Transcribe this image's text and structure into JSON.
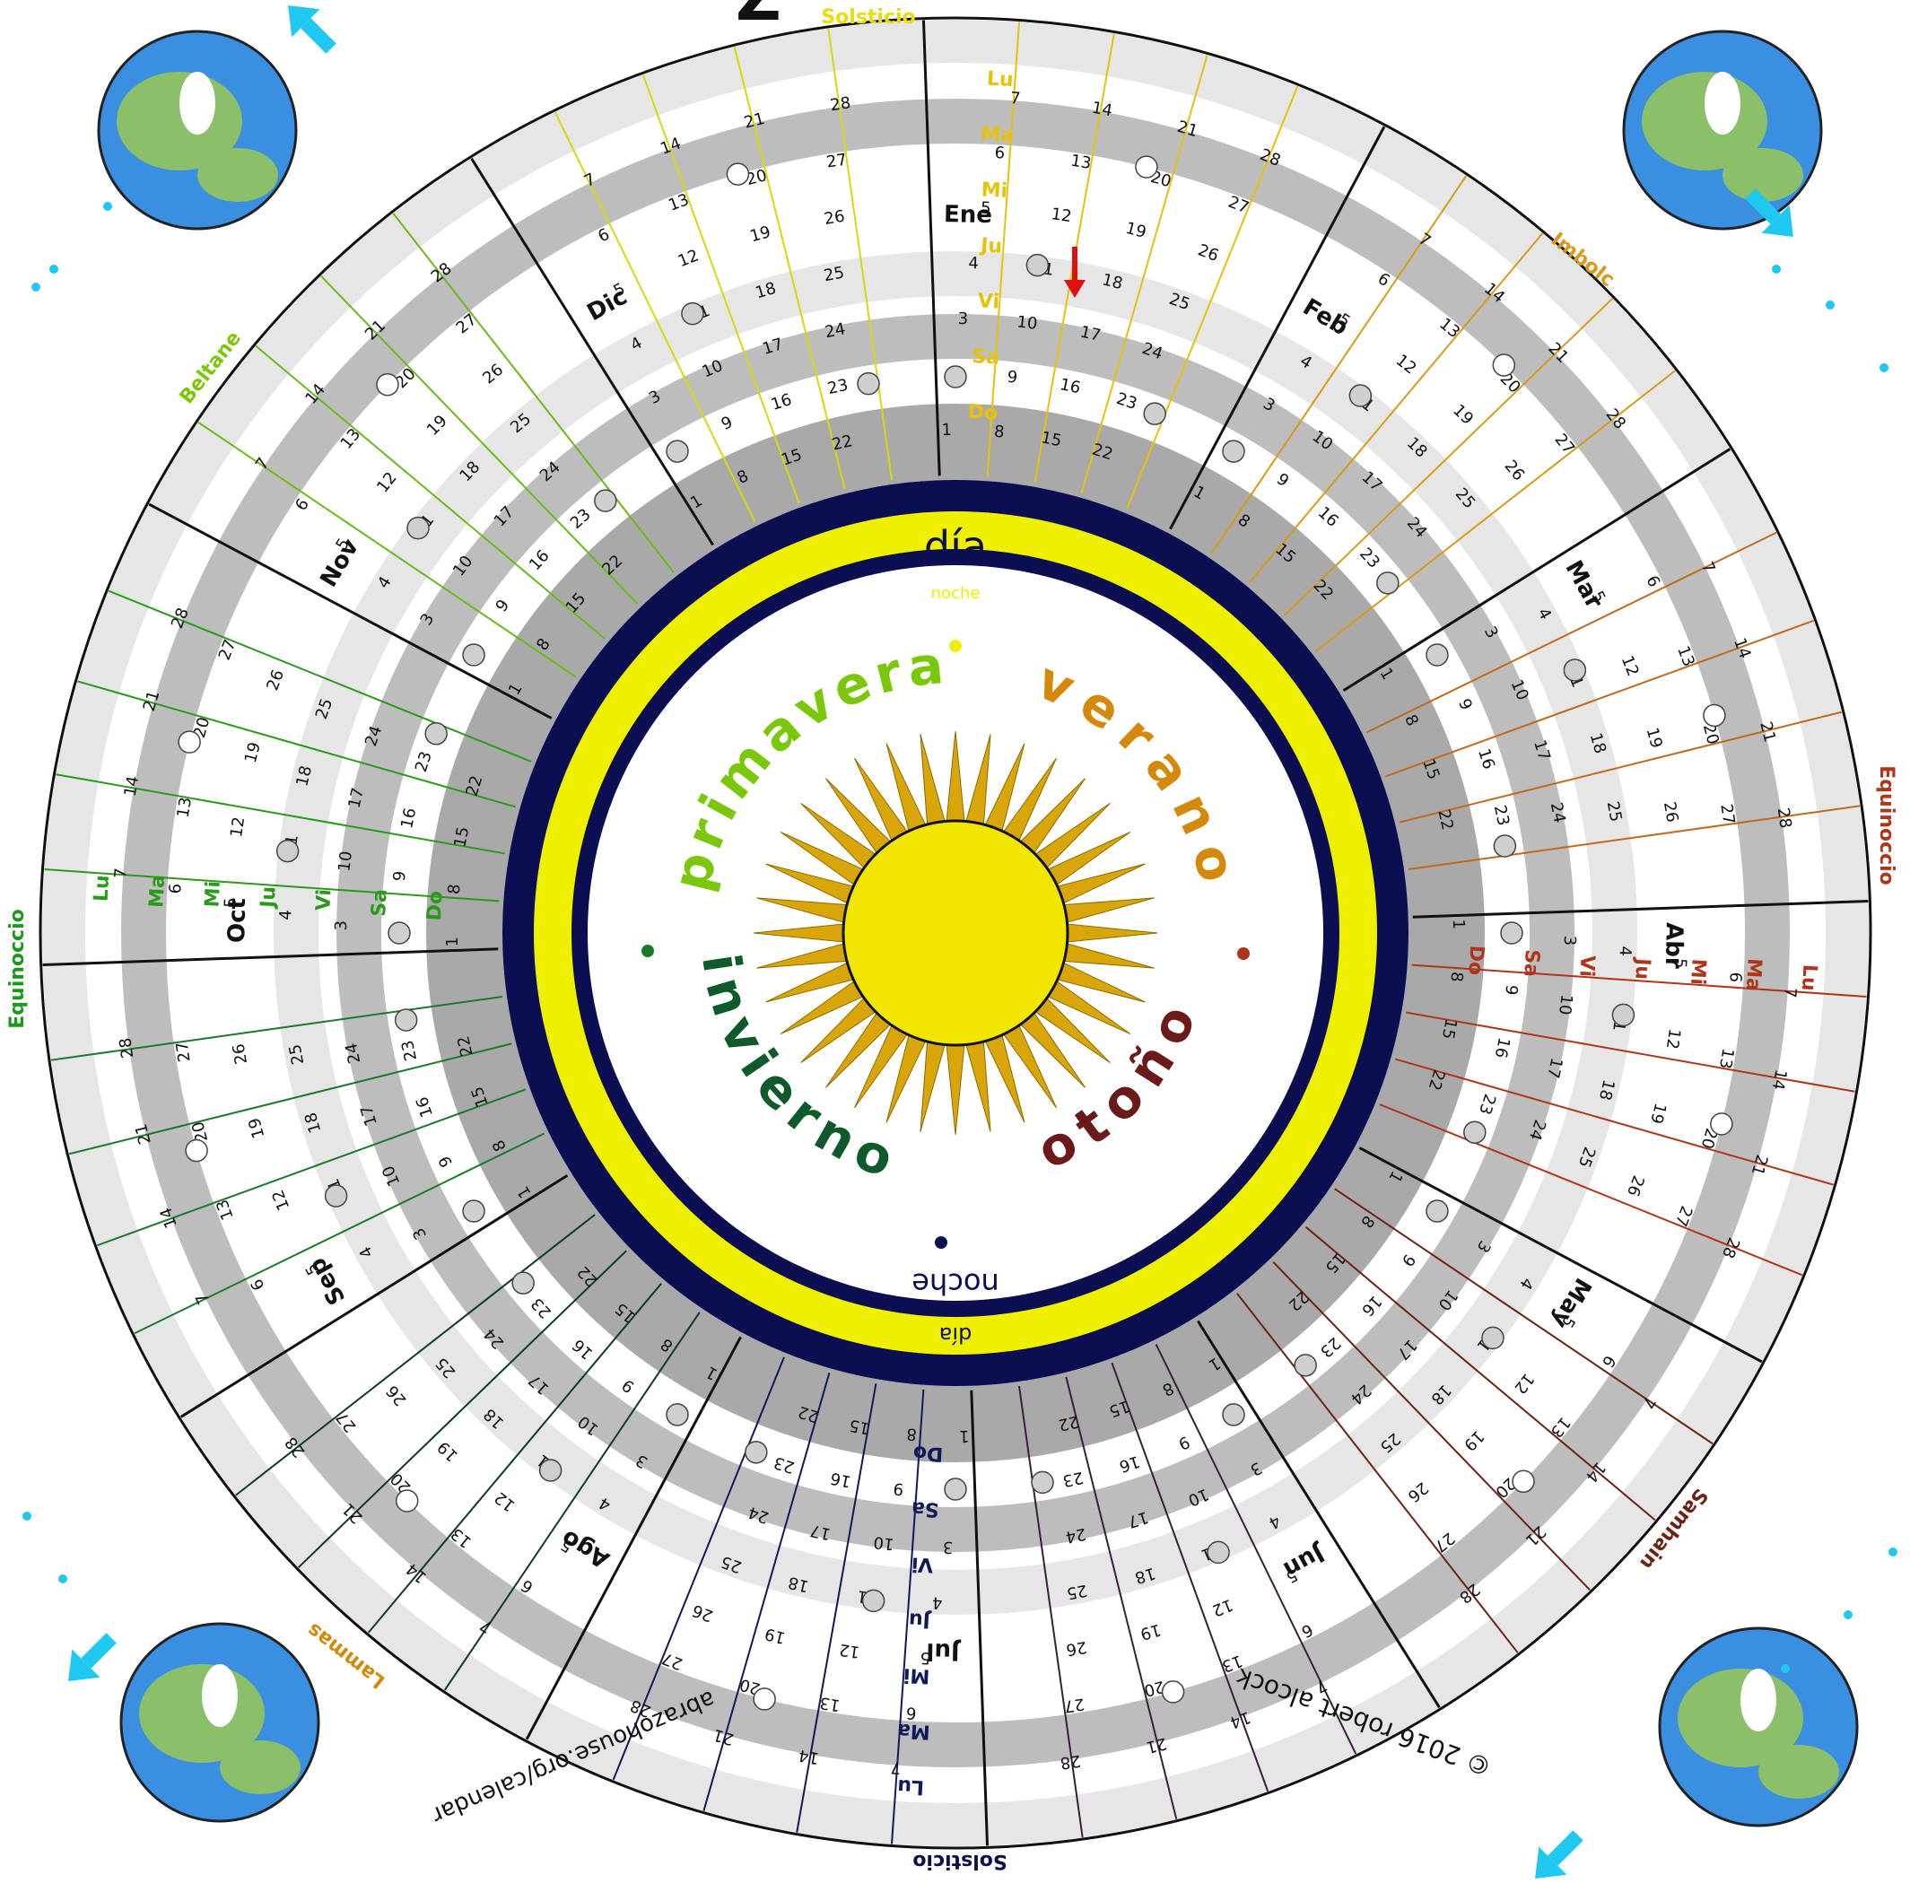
{
  "title_fragment": "Z",
  "center": {
    "day_top": "día",
    "night_top": "noche",
    "night_bottom": "noche",
    "day_bottom": "día",
    "seasons": [
      {
        "label": "primavera",
        "color": "#7ac70c"
      },
      {
        "label": "verano",
        "color": "#d4890a"
      },
      {
        "label": "otoño",
        "color": "#6b1a1a"
      },
      {
        "label": "invierno",
        "color": "#0e5a2a"
      }
    ]
  },
  "festivals": {
    "solstice_top": "Solsticio",
    "solstice_bottom": "Solsticio",
    "equinox_left": "Equinoccio",
    "equinox_right": "Equinoccio",
    "beltane": "Beltane",
    "imbolc": "Imbolc",
    "lammas": "Lammas",
    "samhain": "Samhain"
  },
  "months": [
    {
      "name": "Ene",
      "color": "#e8c20a"
    },
    {
      "name": "Feb",
      "color": "#d99a1a"
    },
    {
      "name": "Mar",
      "color": "#c06a1c"
    },
    {
      "name": "Abr",
      "color": "#b0341a"
    },
    {
      "name": "May",
      "color": "#6e2214"
    },
    {
      "name": "Jun",
      "color": "#3a1e3a"
    },
    {
      "name": "Jul",
      "color": "#0e1a5a"
    },
    {
      "name": "Ago",
      "color": "#0e3a2a"
    },
    {
      "name": "Sep",
      "color": "#1a7a2a"
    },
    {
      "name": "Oct",
      "color": "#2a9a1a"
    },
    {
      "name": "Nov",
      "color": "#6aba1a"
    },
    {
      "name": "Dic",
      "color": "#d8d80a"
    }
  ],
  "weekdays": [
    "Lu",
    "Ma",
    "Mi",
    "Ju",
    "Vi",
    "Sa",
    "Do"
  ],
  "credits": {
    "copyright": "© 2016 robert alcock",
    "url": "abrazohouse.org/calendar"
  },
  "colors": {
    "navy": "#0b0f52",
    "yellow": "#eef000",
    "sun_inner": "#f2e600",
    "sun_rays": "#d9a60a",
    "band_gray": "#bdbdbd",
    "light_band": "#e6e6e6",
    "earth_ocean": "#3a8fe0",
    "earth_land": "#8bbf6a",
    "arrow": "#1ec8f0",
    "marker": "#e01010"
  }
}
